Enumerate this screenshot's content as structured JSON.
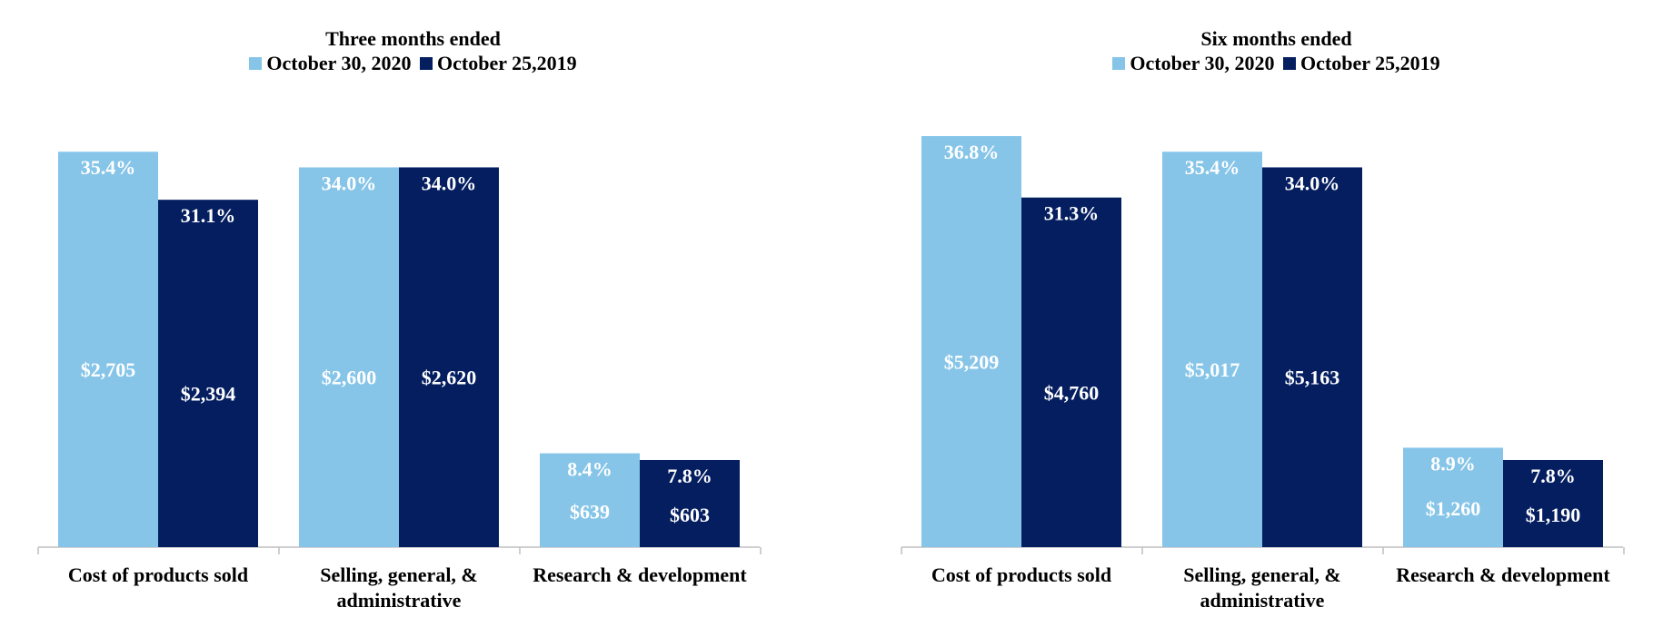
{
  "colors": {
    "current": "#86C5E8",
    "prior": "#041E60",
    "axis": "#BFBFBF",
    "label": "#FFFFFF"
  },
  "legend": {
    "current": "October 30, 2020",
    "prior": "October 25,2019"
  },
  "chart_data": [
    {
      "type": "bar",
      "title": "Three months ended",
      "categories": [
        "Cost of products sold",
        "Selling, general, & administrative",
        "Research & development"
      ],
      "category_lines": [
        [
          "Cost of products sold"
        ],
        [
          "Selling, general, &",
          "administrative"
        ],
        [
          "Research & development"
        ]
      ],
      "series": [
        {
          "name": "October 30, 2020",
          "values": [
            2705,
            2600,
            639
          ],
          "value_labels": [
            "$2,705",
            "$2,600",
            "$639"
          ],
          "percent_labels": [
            "35.4%",
            "34.0%",
            "8.4%"
          ]
        },
        {
          "name": "October 25,2019",
          "values": [
            2394,
            2620,
            603
          ],
          "value_labels": [
            "$2,394",
            "$2,620",
            "$603"
          ],
          "percent_labels": [
            "31.1%",
            "34.0%",
            "7.8%"
          ]
        }
      ],
      "bar_heights_pct": [
        [
          35.4,
          34.0,
          8.4
        ],
        [
          31.1,
          34.0,
          7.8
        ]
      ],
      "ylim": [
        0,
        36.8
      ],
      "xlabel": "",
      "ylabel": "",
      "legend_position": "top-center",
      "grid": false
    },
    {
      "type": "bar",
      "title": "Six months ended",
      "categories": [
        "Cost of products sold",
        "Selling, general, & administrative",
        "Research & development"
      ],
      "category_lines": [
        [
          "Cost of products sold"
        ],
        [
          "Selling, general, &",
          "administrative"
        ],
        [
          "Research & development"
        ]
      ],
      "series": [
        {
          "name": "October 30, 2020",
          "values": [
            5209,
            5017,
            1260
          ],
          "value_labels": [
            "$5,209",
            "$5,017",
            "$1,260"
          ],
          "percent_labels": [
            "36.8%",
            "35.4%",
            "8.9%"
          ]
        },
        {
          "name": "October 25,2019",
          "values": [
            4760,
            5163,
            1190
          ],
          "value_labels": [
            "$4,760",
            "$5,163",
            "$1,190"
          ],
          "percent_labels": [
            "31.3%",
            "34.0%",
            "7.8%"
          ]
        }
      ],
      "bar_heights_pct": [
        [
          36.8,
          35.4,
          8.9
        ],
        [
          31.3,
          34.0,
          7.8
        ]
      ],
      "ylim": [
        0,
        36.8
      ],
      "xlabel": "",
      "ylabel": "",
      "legend_position": "top-center",
      "grid": false
    }
  ]
}
